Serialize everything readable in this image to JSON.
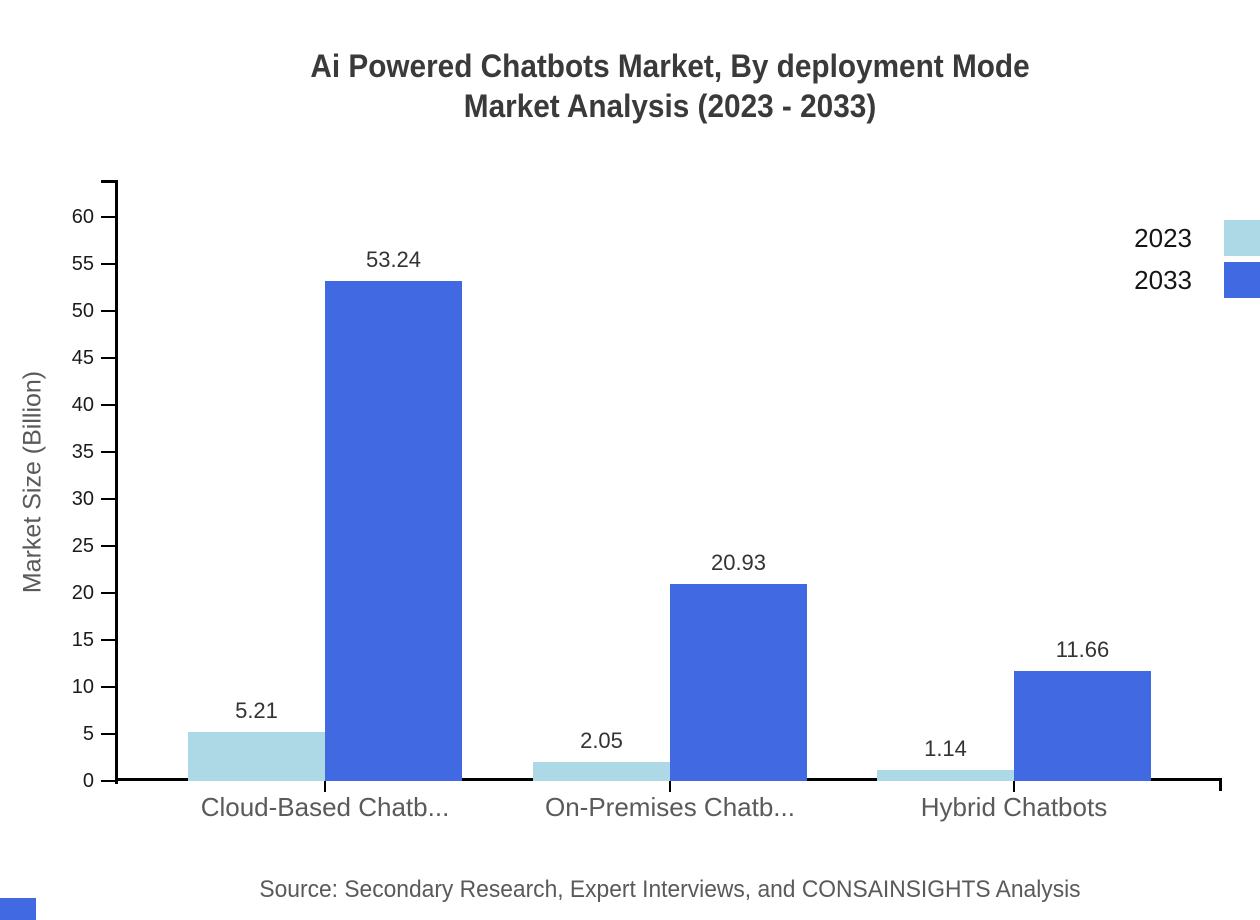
{
  "title": {
    "line1": "Ai Powered Chatbots Market, By deployment Mode",
    "line2": "Market Analysis (2023 - 2033)"
  },
  "source": "Source: Secondary Research, Expert Interviews, and CONSAINSIGHTS Analysis",
  "colors": {
    "series_2023": "#ADD8E6",
    "series_2033": "#4169E1",
    "axis": "#000000",
    "title_text": "#3a3a3a",
    "muted_text": "#5a5a5a",
    "tick_text": "#1b1b1b",
    "brand": "#4169E1"
  },
  "chart_data": {
    "type": "bar",
    "title": "Ai Powered Chatbots Market, By deployment Mode Market Analysis (2023 - 2033)",
    "categories": [
      "Cloud-Based Chatb...",
      "On-Premises Chatb...",
      "Hybrid Chatbots"
    ],
    "series": [
      {
        "name": "2023",
        "color": "#ADD8E6",
        "values": [
          5.21,
          2.05,
          1.14
        ],
        "labels": [
          "5.21",
          "2.05",
          "1.14"
        ]
      },
      {
        "name": "2033",
        "color": "#4169E1",
        "values": [
          53.24,
          20.93,
          11.66
        ],
        "labels": [
          "53.24",
          "20.93",
          "11.66"
        ]
      }
    ],
    "xlabel": "",
    "ylabel": "Market Size (Billion)",
    "ylim": [
      0,
      60
    ],
    "yticks": [
      0,
      5,
      10,
      15,
      20,
      25,
      30,
      35,
      40,
      45,
      50,
      55,
      60
    ],
    "grid": false,
    "legend_position": "top-right"
  }
}
